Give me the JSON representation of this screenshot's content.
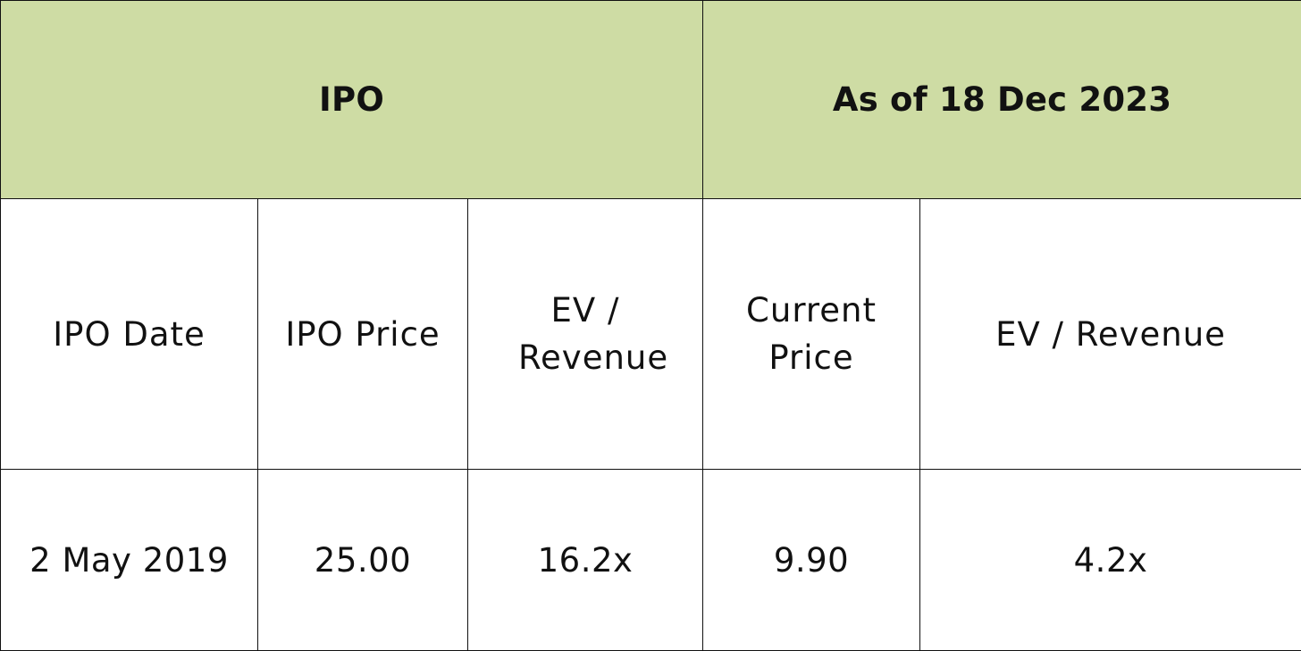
{
  "style": {
    "group_header_bg": "#cedca4",
    "border_color": "#111111",
    "text_color": "#111111",
    "cell_bg": "#ffffff"
  },
  "groups": {
    "ipo": "IPO",
    "current": "As of 18 Dec 2023"
  },
  "columns": {
    "ipo_date": "IPO Date",
    "ipo_price": "IPO Price",
    "ipo_ev_revenue": "EV / Revenue",
    "current_price": "Current Price",
    "current_ev_revenue": "EV / Revenue"
  },
  "values": {
    "ipo_date": "2 May 2019",
    "ipo_price": "25.00",
    "ipo_ev_revenue": "16.2x",
    "current_price": "9.90",
    "current_ev_revenue": "4.2x"
  }
}
